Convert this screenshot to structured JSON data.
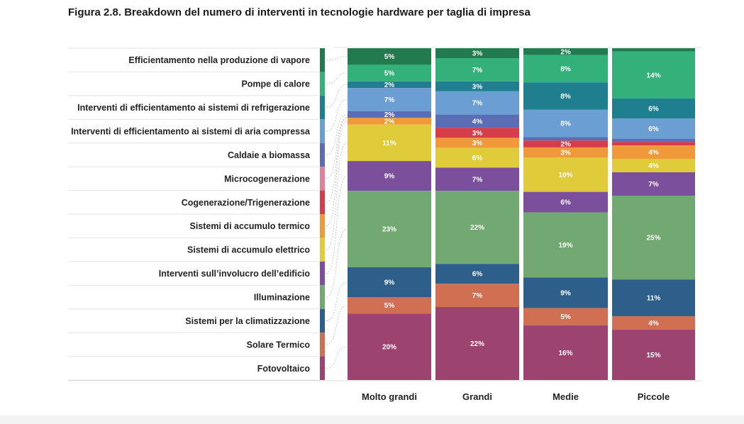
{
  "title": "Figura 2.8.  Breakdown del numero di interventi in tecnologie hardware per taglia di impresa",
  "chart_data": {
    "type": "bar",
    "stacked": true,
    "normalized": true,
    "unit": "%",
    "title": "Figura 2.8.  Breakdown del numero di interventi in tecnologie hardware per taglia di impresa",
    "categories": [
      "Molto grandi",
      "Grandi",
      "Medie",
      "Piccole"
    ],
    "series": [
      {
        "name": "Efficientamento nella produzione di vapore",
        "color": "#227a4f",
        "values": [
          5,
          3,
          2,
          1
        ]
      },
      {
        "name": "Pompe di calore",
        "color": "#34b07a",
        "values": [
          5,
          7,
          8,
          14
        ]
      },
      {
        "name": "Interventi di efficientamento ai sistemi di refrigerazione",
        "color": "#1f7f8e",
        "values": [
          2,
          3,
          8,
          6
        ]
      },
      {
        "name": "Interventi di efficientamento ai sistemi di aria compressa",
        "color": "#6b9fd4",
        "values": [
          7,
          7,
          8,
          6
        ]
      },
      {
        "name": "Caldaie a biomassa",
        "color": "#5a6db5",
        "values": [
          2,
          4,
          1,
          1
        ]
      },
      {
        "name": "Microcogenerazione",
        "color": "#e0809a",
        "values": [
          0,
          0,
          0,
          0
        ]
      },
      {
        "name": "Cogenerazione/Trigenerazione",
        "color": "#d63c4a",
        "values": [
          0,
          3,
          2,
          1
        ]
      },
      {
        "name": "Sistemi di accumulo termico",
        "color": "#f0993a",
        "values": [
          2,
          3,
          3,
          4
        ]
      },
      {
        "name": "Sistemi di accumulo elettrico",
        "color": "#e0cc3a",
        "values": [
          11,
          6,
          10,
          4
        ]
      },
      {
        "name": "Interventi sull'involucro dell'edificio",
        "color": "#7c4f9c",
        "values": [
          9,
          7,
          6,
          7
        ]
      },
      {
        "name": "Illuminazione",
        "color": "#72a872",
        "values": [
          23,
          22,
          19,
          25
        ]
      },
      {
        "name": "Sistemi per la climatizzazione",
        "color": "#2d5f8a",
        "values": [
          9,
          6,
          9,
          11
        ]
      },
      {
        "name": "Solare Termico",
        "color": "#d06f52",
        "values": [
          5,
          7,
          5,
          4
        ]
      },
      {
        "name": "Fotovoltaico",
        "color": "#9c436f",
        "values": [
          20,
          22,
          16,
          15
        ]
      }
    ],
    "data_labels": [
      [
        "5%",
        "5%",
        "2%",
        "7%",
        "2%",
        "",
        "",
        "2%",
        "11%",
        "9%",
        "23%",
        "9%",
        "5%",
        "20%"
      ],
      [
        "3%",
        "7%",
        "3%",
        "7%",
        "4%",
        "",
        "3%",
        "3%",
        "6%",
        "7%",
        "22%",
        "6%",
        "7%",
        "22%"
      ],
      [
        "2%",
        "8%",
        "8%",
        "8%",
        "",
        "",
        "2%",
        "3%",
        "10%",
        "6%",
        "19%",
        "9%",
        "5%",
        "16%"
      ],
      [
        "",
        "14%",
        "6%",
        "6%",
        "",
        "",
        "",
        "4%",
        "4%",
        "7%",
        "25%",
        "11%",
        "4%",
        "15%"
      ]
    ],
    "legend": [
      "Efficientamento nella produzione di vapore",
      "Pompe di calore",
      "Interventi di efficientamento ai sistemi di refrigerazione",
      "Interventi di efficientamento ai sistemi di aria compressa",
      "Caldaie a biomassa ",
      "Microcogenerazione",
      "Cogenerazione/Trigenerazione ",
      "Sistemi di accumulo termico",
      "Sistemi di accumulo elettrico",
      "Interventi sull’involucro dell’edificio",
      "Illuminazione",
      "Sistemi per la climatizzazione",
      "Solare Termico",
      "Fotovoltaico"
    ],
    "legend_position": "left",
    "xlabel": "",
    "ylabel": ""
  }
}
